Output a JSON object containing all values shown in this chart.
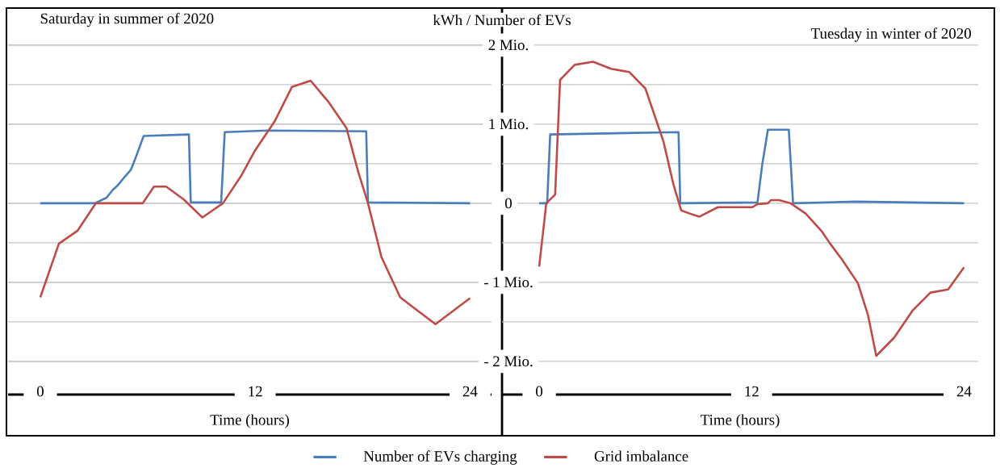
{
  "chart_data": [
    {
      "type": "line",
      "title": "Saturday in summer of 2020",
      "xlabel": "Time (hours)",
      "xlim": [
        -1.8,
        25.2
      ],
      "xticks": [
        0,
        12,
        24
      ],
      "ylim": [
        -2.94,
        2.46
      ],
      "yticks": [
        {
          "value": -2,
          "label": null
        },
        {
          "value": -1.5,
          "label": null
        },
        {
          "value": -1,
          "label": null
        },
        {
          "value": -0.5,
          "label": null
        },
        {
          "value": 0,
          "label": null
        },
        {
          "value": 0.5,
          "label": null
        },
        {
          "value": 1,
          "label": null
        },
        {
          "value": 1.5,
          "label": null
        },
        {
          "value": 2,
          "label": null
        }
      ],
      "tick_labels": "x",
      "grid": "y",
      "marker": "none",
      "line_style": "solid",
      "legend": false,
      "series": [
        {
          "color": "#4a7ebb",
          "x": [
            0,
            3.06,
            3.7,
            4.05,
            4.3,
            4.7,
            5.05,
            5.3,
            5.77,
            8.3,
            8.4,
            10.1,
            10.3,
            12.7,
            18.2,
            18.3,
            24
          ],
          "values": [
            0,
            0,
            0.07,
            0.17,
            0.22,
            0.33,
            0.42,
            0.56,
            0.85,
            0.87,
            0.01,
            0.01,
            0.9,
            0.92,
            0.91,
            0.01,
            0
          ]
        },
        {
          "color": "#be4b48",
          "x": [
            0,
            1.04,
            2.07,
            3.1,
            5.72,
            6.35,
            7.03,
            8.0,
            9.05,
            10.2,
            11.2,
            12.0,
            13.1,
            14.05,
            15.1,
            15.8,
            16.1,
            17.1,
            17.75,
            18.3,
            19.05,
            20.1,
            22.07,
            24
          ],
          "values": [
            -1.19,
            -0.51,
            -0.35,
            0,
            0,
            0.21,
            0.21,
            0.05,
            -0.18,
            0,
            0.34,
            0.67,
            1.04,
            1.47,
            1.55,
            1.36,
            1.28,
            0.95,
            0.4,
            0,
            -0.68,
            -1.19,
            -1.53,
            -1.2
          ]
        }
      ]
    },
    {
      "type": "line",
      "title": "Tuesday in winter of 2020",
      "xlabel": "Time (hours)",
      "ylabel": "kWh / Number of  EVs",
      "xlim": [
        -2.1,
        24.8
      ],
      "xticks": [
        0,
        12,
        24
      ],
      "ylim": [
        -2.94,
        2.46
      ],
      "yticks": [
        {
          "value": -2,
          "label": "- 2 Mio."
        },
        {
          "value": -1.5,
          "label": null
        },
        {
          "value": -1,
          "label": "- 1 Mio."
        },
        {
          "value": -0.5,
          "label": null
        },
        0,
        {
          "value": 0.5,
          "label": null
        },
        {
          "value": 1,
          "label": "1 Mio."
        },
        {
          "value": 1.5,
          "label": null
        },
        {
          "value": 2,
          "label": "2 Mio."
        }
      ],
      "grid": "y",
      "marker": "none",
      "line_style": "solid",
      "legend": "bottom",
      "series": [
        {
          "name": "Number of EVs charging",
          "color": "#4a7ebb",
          "x": [
            0,
            0.45,
            0.62,
            7.87,
            7.97,
            12.33,
            12.6,
            12.92,
            14.1,
            14.34,
            17.9,
            24
          ],
          "values": [
            0,
            0,
            0.87,
            0.9,
            0,
            0.01,
            0.49,
            0.93,
            0.93,
            0,
            0.02,
            0
          ]
        },
        {
          "name": "Grid imbalance",
          "color": "#be4b48",
          "x": [
            0,
            0.4,
            0.9,
            1.18,
            2.0,
            3.04,
            4.06,
            5.08,
            6.0,
            7.02,
            7.58,
            8.02,
            8.5,
            9.04,
            10.1,
            12.05,
            12.33,
            12.92,
            13.1,
            13.55,
            14.2,
            15.05,
            15.98,
            16.4,
            17.1,
            18.0,
            18.57,
            19.04,
            20.05,
            21.08,
            22.1,
            23.1,
            24
          ],
          "values": [
            -0.8,
            0,
            0.11,
            1.56,
            1.75,
            1.79,
            1.7,
            1.66,
            1.45,
            0.78,
            0.24,
            -0.09,
            -0.13,
            -0.17,
            -0.05,
            -0.05,
            -0.01,
            0,
            0.04,
            0.04,
            0,
            -0.13,
            -0.36,
            -0.5,
            -0.71,
            -1.01,
            -1.41,
            -1.93,
            -1.7,
            -1.36,
            -1.13,
            -1.09,
            -0.81
          ]
        }
      ]
    }
  ]
}
